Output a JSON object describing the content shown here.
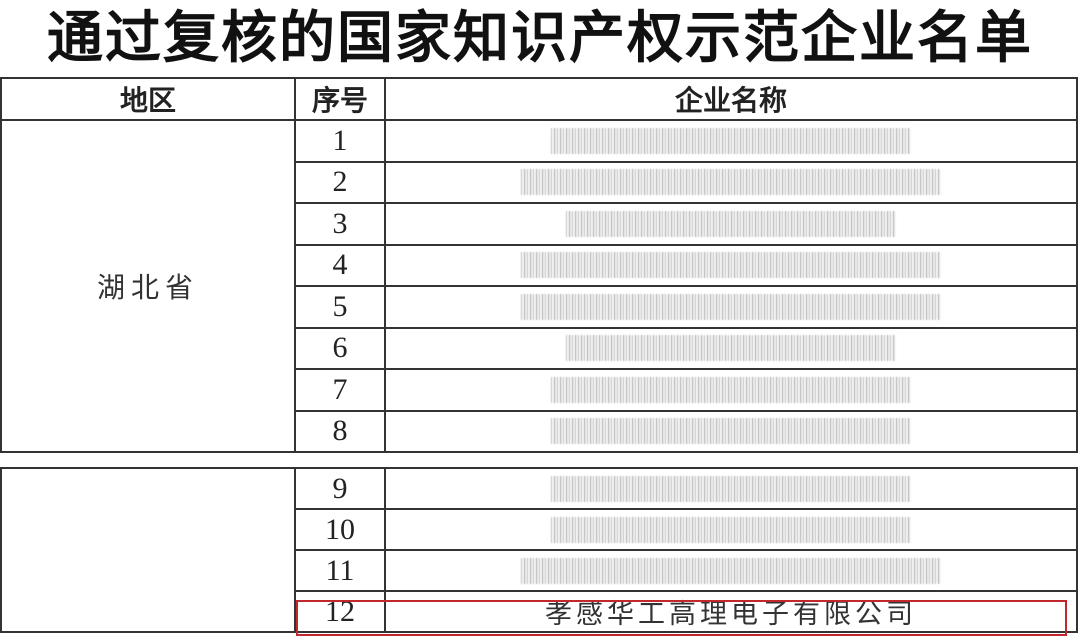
{
  "title": "通过复核的国家知识产权示范企业名单",
  "headers": {
    "region": "地区",
    "number": "序号",
    "company": "企业名称"
  },
  "group1": {
    "region": "湖北省",
    "rows": [
      "1",
      "2",
      "3",
      "4",
      "5",
      "6",
      "7",
      "8"
    ]
  },
  "group2": {
    "region": "",
    "rows": [
      "9",
      "10",
      "11"
    ]
  },
  "highlighted_row": {
    "number": "12",
    "company": "孝感华工高理电子有限公司",
    "highlight_color": "#c0282d"
  }
}
